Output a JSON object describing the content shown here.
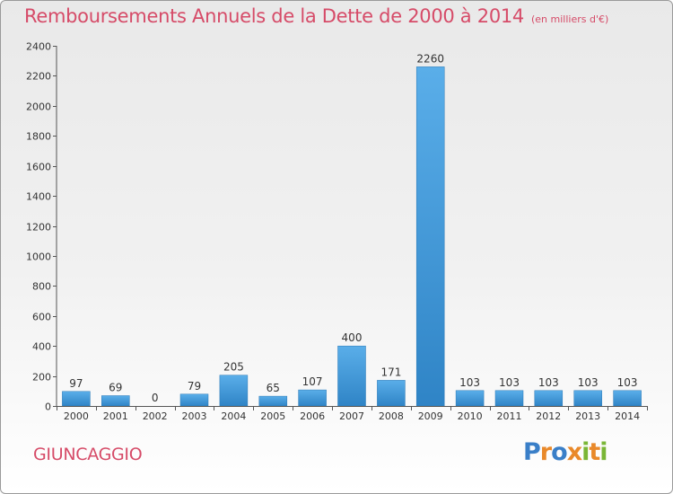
{
  "chart_data": {
    "type": "bar",
    "title": "Remboursements Annuels de la Dette de 2000 à 2014",
    "unit_note": "(en milliers d'€)",
    "categories": [
      "2000",
      "2001",
      "2002",
      "2003",
      "2004",
      "2005",
      "2006",
      "2007",
      "2008",
      "2009",
      "2010",
      "2011",
      "2012",
      "2013",
      "2014"
    ],
    "values": [
      97,
      69,
      0,
      79,
      205,
      65,
      107,
      400,
      171,
      2260,
      103,
      103,
      103,
      103,
      103
    ],
    "ylim": [
      0,
      2400
    ],
    "yticks": [
      0,
      200,
      400,
      600,
      800,
      1000,
      1200,
      1400,
      1600,
      1800,
      2000,
      2200,
      2400
    ],
    "grid": false,
    "legend": "none",
    "bar_color": "#3d97d8",
    "title_color": "#d64b68"
  },
  "footer": {
    "commune": "GIUNCAGGIO",
    "logo_text": "Proxiti",
    "logo_colors": [
      "#3a7fc8",
      "#e9892a",
      "#3a7fc8",
      "#e9892a",
      "#7ab636",
      "#e9892a",
      "#7ab636"
    ]
  }
}
